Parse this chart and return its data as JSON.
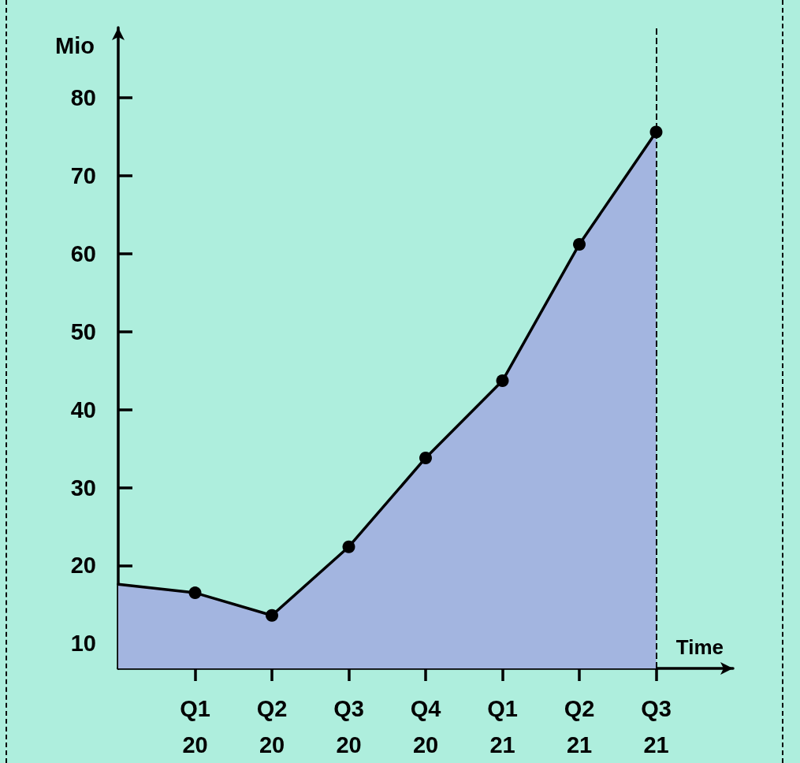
{
  "chart_data": {
    "type": "area",
    "ylabel": "Mio",
    "xlabel": "Time",
    "categories": [
      null,
      "Q1 20",
      "Q2 20",
      "Q3 20",
      "Q4 20",
      "Q1 21",
      "Q2 21",
      "Q3 21",
      null
    ],
    "series": [
      {
        "color": "#a3b5e0",
        "values": [
          17.6,
          16.5,
          13.6,
          22.4,
          33.8,
          43.7,
          61.2,
          75.6,
          null
        ]
      }
    ],
    "ylim": [
      6.8,
      89
    ],
    "yticks": [
      10,
      20,
      30,
      40,
      50,
      60,
      70,
      80
    ],
    "ref_lines": [
      {
        "axis": "x",
        "value": "Q3 21",
        "color": "#000000",
        "line_style": "dashed"
      }
    ],
    "marker": "circle",
    "line_style": "solid",
    "grid": false
  }
}
